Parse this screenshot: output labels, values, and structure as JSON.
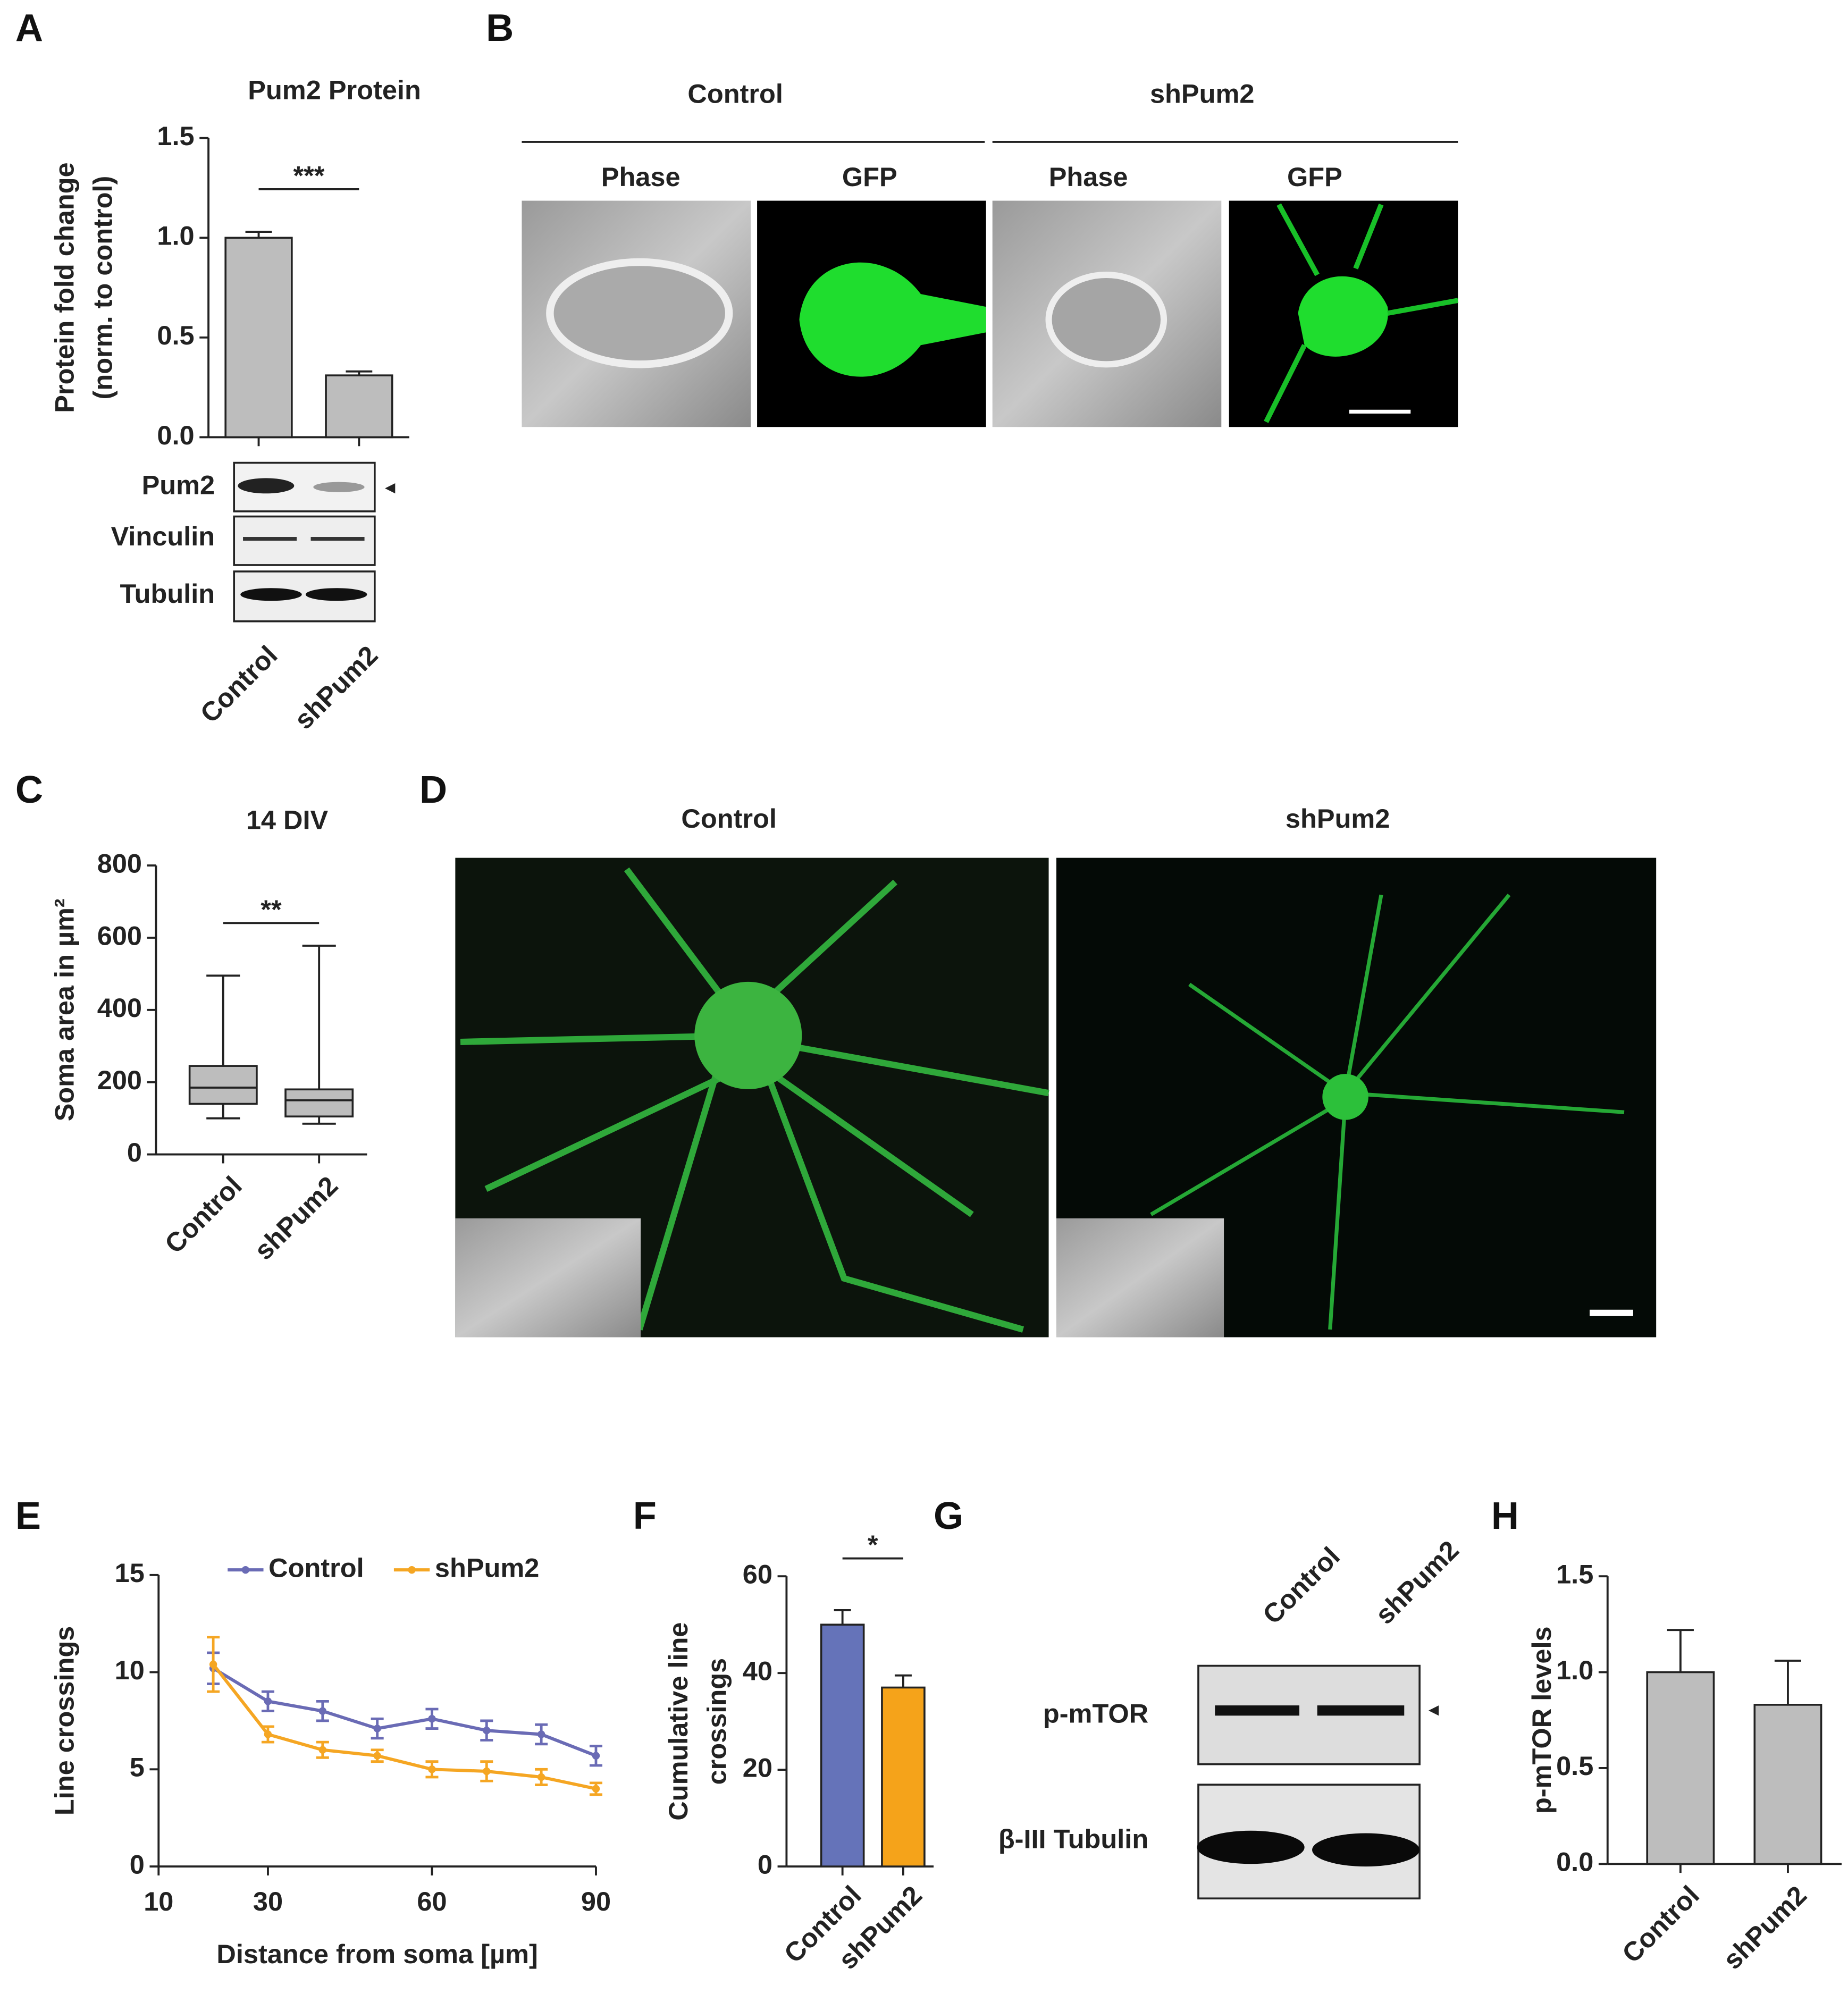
{
  "panel_labels": [
    "A",
    "B",
    "C",
    "D",
    "E",
    "F",
    "G",
    "H"
  ],
  "chart_data": [
    {
      "type": "bar",
      "title": "Pum2 Protein",
      "ylabel": [
        "Protein fold change",
        "(norm. to control)"
      ],
      "categories": [
        "Control",
        "shPum2"
      ],
      "values": [
        1.0,
        0.31
      ],
      "errors": [
        0.03,
        0.02
      ],
      "color": "#bdbdbd",
      "ylim": [
        0,
        1.5
      ],
      "yticks": [
        {
          "value": 0,
          "label": "0.0"
        },
        {
          "value": 0.5,
          "label": "0.5"
        },
        {
          "value": 1,
          "label": "1.0"
        },
        {
          "value": 1.5,
          "label": "1.5"
        }
      ],
      "annotation": "***"
    },
    {
      "type": "box",
      "title": "14 DIV",
      "ylabel": [
        "Soma area in µm²"
      ],
      "categories": [
        "Control",
        "shPum2"
      ],
      "min": [
        100,
        85
      ],
      "q1": [
        140,
        105
      ],
      "median": [
        185,
        150
      ],
      "q3": [
        245,
        180
      ],
      "max": [
        495,
        578
      ],
      "color": "#bdbdbd",
      "ylim": [
        0,
        800
      ],
      "yticks": [
        0,
        200,
        400,
        600,
        800
      ],
      "annotation": "**"
    },
    {
      "type": "line",
      "xlabel": "Distance from soma [µm]",
      "ylabel": [
        "Line crossings"
      ],
      "x": [
        20,
        30,
        40,
        50,
        60,
        70,
        80,
        90
      ],
      "series": [
        {
          "name": "Control",
          "color": "#6a6bb5",
          "values": [
            10.2,
            8.5,
            8.0,
            7.1,
            7.6,
            7.0,
            6.8,
            5.7
          ],
          "errors": [
            0.8,
            0.5,
            0.5,
            0.5,
            0.5,
            0.5,
            0.5,
            0.5
          ]
        },
        {
          "name": "shPum2",
          "color": "#f5a623",
          "values": [
            10.4,
            6.8,
            6.0,
            5.7,
            5.0,
            4.9,
            4.6,
            4.0
          ],
          "errors": [
            1.4,
            0.4,
            0.4,
            0.3,
            0.4,
            0.5,
            0.4,
            0.3
          ]
        }
      ],
      "xlim": [
        10,
        90
      ],
      "xticks": [
        10,
        30,
        60,
        90
      ],
      "ylim": [
        0,
        15
      ],
      "yticks": [
        0,
        5,
        10,
        15
      ]
    },
    {
      "type": "bar",
      "ylabel": [
        "Cumulative line",
        "crossings"
      ],
      "categories": [
        "Control",
        "shPum2"
      ],
      "values": [
        50,
        37
      ],
      "errors": [
        3,
        2.5
      ],
      "colors": [
        "#6573b9",
        "#f5a31a"
      ],
      "ylim": [
        0,
        60
      ],
      "yticks": [
        0,
        20,
        40,
        60
      ],
      "annotation": "*"
    },
    {
      "type": "bar",
      "ylabel": [
        "p-mTOR levels"
      ],
      "categories": [
        "Control",
        "shPum2"
      ],
      "values": [
        1.0,
        0.83
      ],
      "errors": [
        0.22,
        0.23
      ],
      "color": "#bdbdbd",
      "ylim": [
        0,
        1.5
      ],
      "yticks": [
        {
          "value": 0,
          "label": "0.0"
        },
        {
          "value": 0.5,
          "label": "0.5"
        },
        {
          "value": 1,
          "label": "1.0"
        },
        {
          "value": 1.5,
          "label": "1.5"
        }
      ]
    }
  ],
  "panel_a_blot": {
    "rows": [
      "Pum2",
      "Vinculin",
      "Tubulin"
    ]
  },
  "panel_b": {
    "groups": [
      "Control",
      "shPum2"
    ],
    "columns": [
      "Phase",
      "GFP",
      "Phase",
      "GFP"
    ]
  },
  "panel_d": {
    "columns": [
      "Control",
      "shPum2"
    ]
  },
  "panel_g": {
    "columns": [
      "Control",
      "shPum2"
    ],
    "rows": [
      "p-mTOR",
      "β-III Tubulin"
    ]
  }
}
